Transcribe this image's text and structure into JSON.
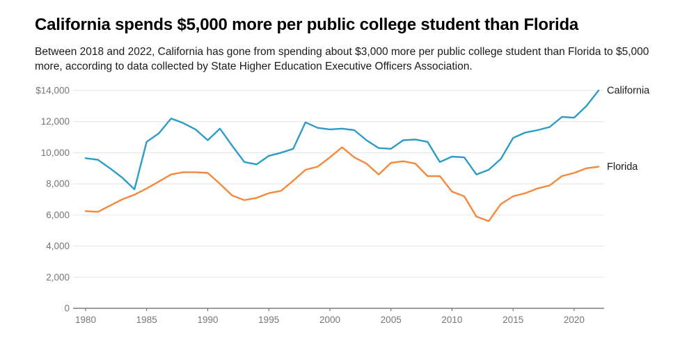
{
  "header": {
    "title": "California spends $5,000 more per public college student than Florida",
    "subtitle": "Between 2018 and 2022, California has gone from spending about $3,000 more per public college student than Florida to $5,000 more, according to data collected by State Higher Education Executive Officers Association."
  },
  "chart_data": {
    "type": "line",
    "title": "California spends $5,000 more per public college student than Florida",
    "xlabel": "",
    "ylabel": "",
    "xlim": [
      1980,
      2022
    ],
    "ylim": [
      0,
      14000
    ],
    "grid": true,
    "legend_position": "line-end-labels",
    "x": [
      1980,
      1981,
      1982,
      1983,
      1984,
      1985,
      1986,
      1987,
      1988,
      1989,
      1990,
      1991,
      1992,
      1993,
      1994,
      1995,
      1996,
      1997,
      1998,
      1999,
      2000,
      2001,
      2002,
      2003,
      2004,
      2005,
      2006,
      2007,
      2008,
      2009,
      2010,
      2011,
      2012,
      2013,
      2014,
      2015,
      2016,
      2017,
      2018,
      2019,
      2020,
      2021,
      2022
    ],
    "series": [
      {
        "name": "California",
        "color": "#2b9bc7",
        "values": [
          9650,
          9550,
          9000,
          8400,
          7650,
          10700,
          11250,
          12200,
          11900,
          11500,
          10800,
          11550,
          10450,
          9400,
          9250,
          9800,
          10000,
          10250,
          11950,
          11600,
          11500,
          11550,
          11450,
          10800,
          10300,
          10250,
          10800,
          10850,
          10700,
          9400,
          9750,
          9700,
          8600,
          8900,
          9600,
          10950,
          11300,
          11450,
          11650,
          12300,
          12250,
          13000,
          14000
        ]
      },
      {
        "name": "Florida",
        "color": "#f5883b",
        "values": [
          6250,
          6200,
          6600,
          7000,
          7300,
          7700,
          8150,
          8600,
          8750,
          8750,
          8700,
          8000,
          7250,
          6950,
          7100,
          7400,
          7550,
          8200,
          8900,
          9100,
          9700,
          10350,
          9700,
          9300,
          8600,
          9350,
          9450,
          9300,
          8500,
          8500,
          7500,
          7200,
          5900,
          5600,
          6700,
          7200,
          7400,
          7700,
          7900,
          8500,
          8700,
          9000,
          9100
        ]
      }
    ],
    "y_ticks": [
      {
        "value": 14000,
        "label": "$14,000"
      },
      {
        "value": 12000,
        "label": "12,000"
      },
      {
        "value": 10000,
        "label": "10,000"
      },
      {
        "value": 8000,
        "label": "8,000"
      },
      {
        "value": 6000,
        "label": "6,000"
      },
      {
        "value": 4000,
        "label": "4,000"
      },
      {
        "value": 2000,
        "label": "2,000"
      },
      {
        "value": 0,
        "label": "0"
      }
    ],
    "x_ticks": [
      1980,
      1985,
      1990,
      1995,
      2000,
      2005,
      2010,
      2015,
      2020
    ],
    "colors": {
      "grid": "#e2e2e2",
      "axis_line": "#616161",
      "axis_text": "#757575",
      "series_label_text": "#1a1a1a"
    }
  }
}
